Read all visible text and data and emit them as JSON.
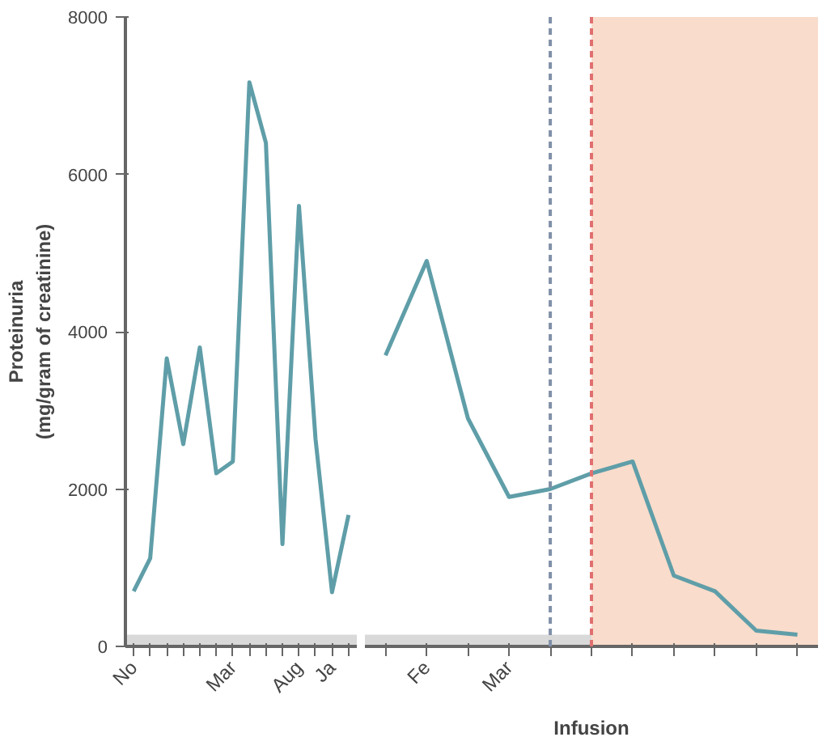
{
  "chart_data": [
    {
      "type": "line",
      "ylabel": "Proteinuria\n(mg/gram of creatinine)",
      "categories": [
        "No",
        null,
        null,
        null,
        null,
        null,
        "Mar",
        null,
        null,
        null,
        "Aug",
        null,
        "Ja",
        null
      ],
      "series": [
        {
          "color": "#5f9ea8",
          "values": [
            700,
            1120,
            3660,
            2570,
            3800,
            2200,
            2350,
            7170,
            6400,
            1300,
            5600,
            2640,
            690,
            1670
          ]
        }
      ],
      "ylim": [
        0,
        8000
      ],
      "yticks": [
        0,
        2000,
        4000,
        6000,
        8000
      ],
      "grid": false,
      "marker": "none",
      "line_style": "solid",
      "bands": [
        {
          "axis": "y",
          "from": 0,
          "to": 150,
          "color": "#d9d9d9"
        }
      ]
    },
    {
      "type": "line",
      "xlabel": "Infusion",
      "categories": [
        null,
        "Fe",
        null,
        "Mar",
        null,
        null,
        null,
        null,
        null,
        null,
        null
      ],
      "series": [
        {
          "color": "#5f9ea8",
          "values": [
            3700,
            4900,
            2900,
            1900,
            2000,
            2200,
            2350,
            900,
            700,
            200,
            150
          ]
        }
      ],
      "ylim": [
        0,
        8000
      ],
      "tick_labels": "x",
      "grid": false,
      "marker": "none",
      "line_style": "solid",
      "bands": [
        {
          "axis": "y",
          "from": 0,
          "to": 150,
          "color": "#d9d9d9"
        }
      ]
    }
  ]
}
